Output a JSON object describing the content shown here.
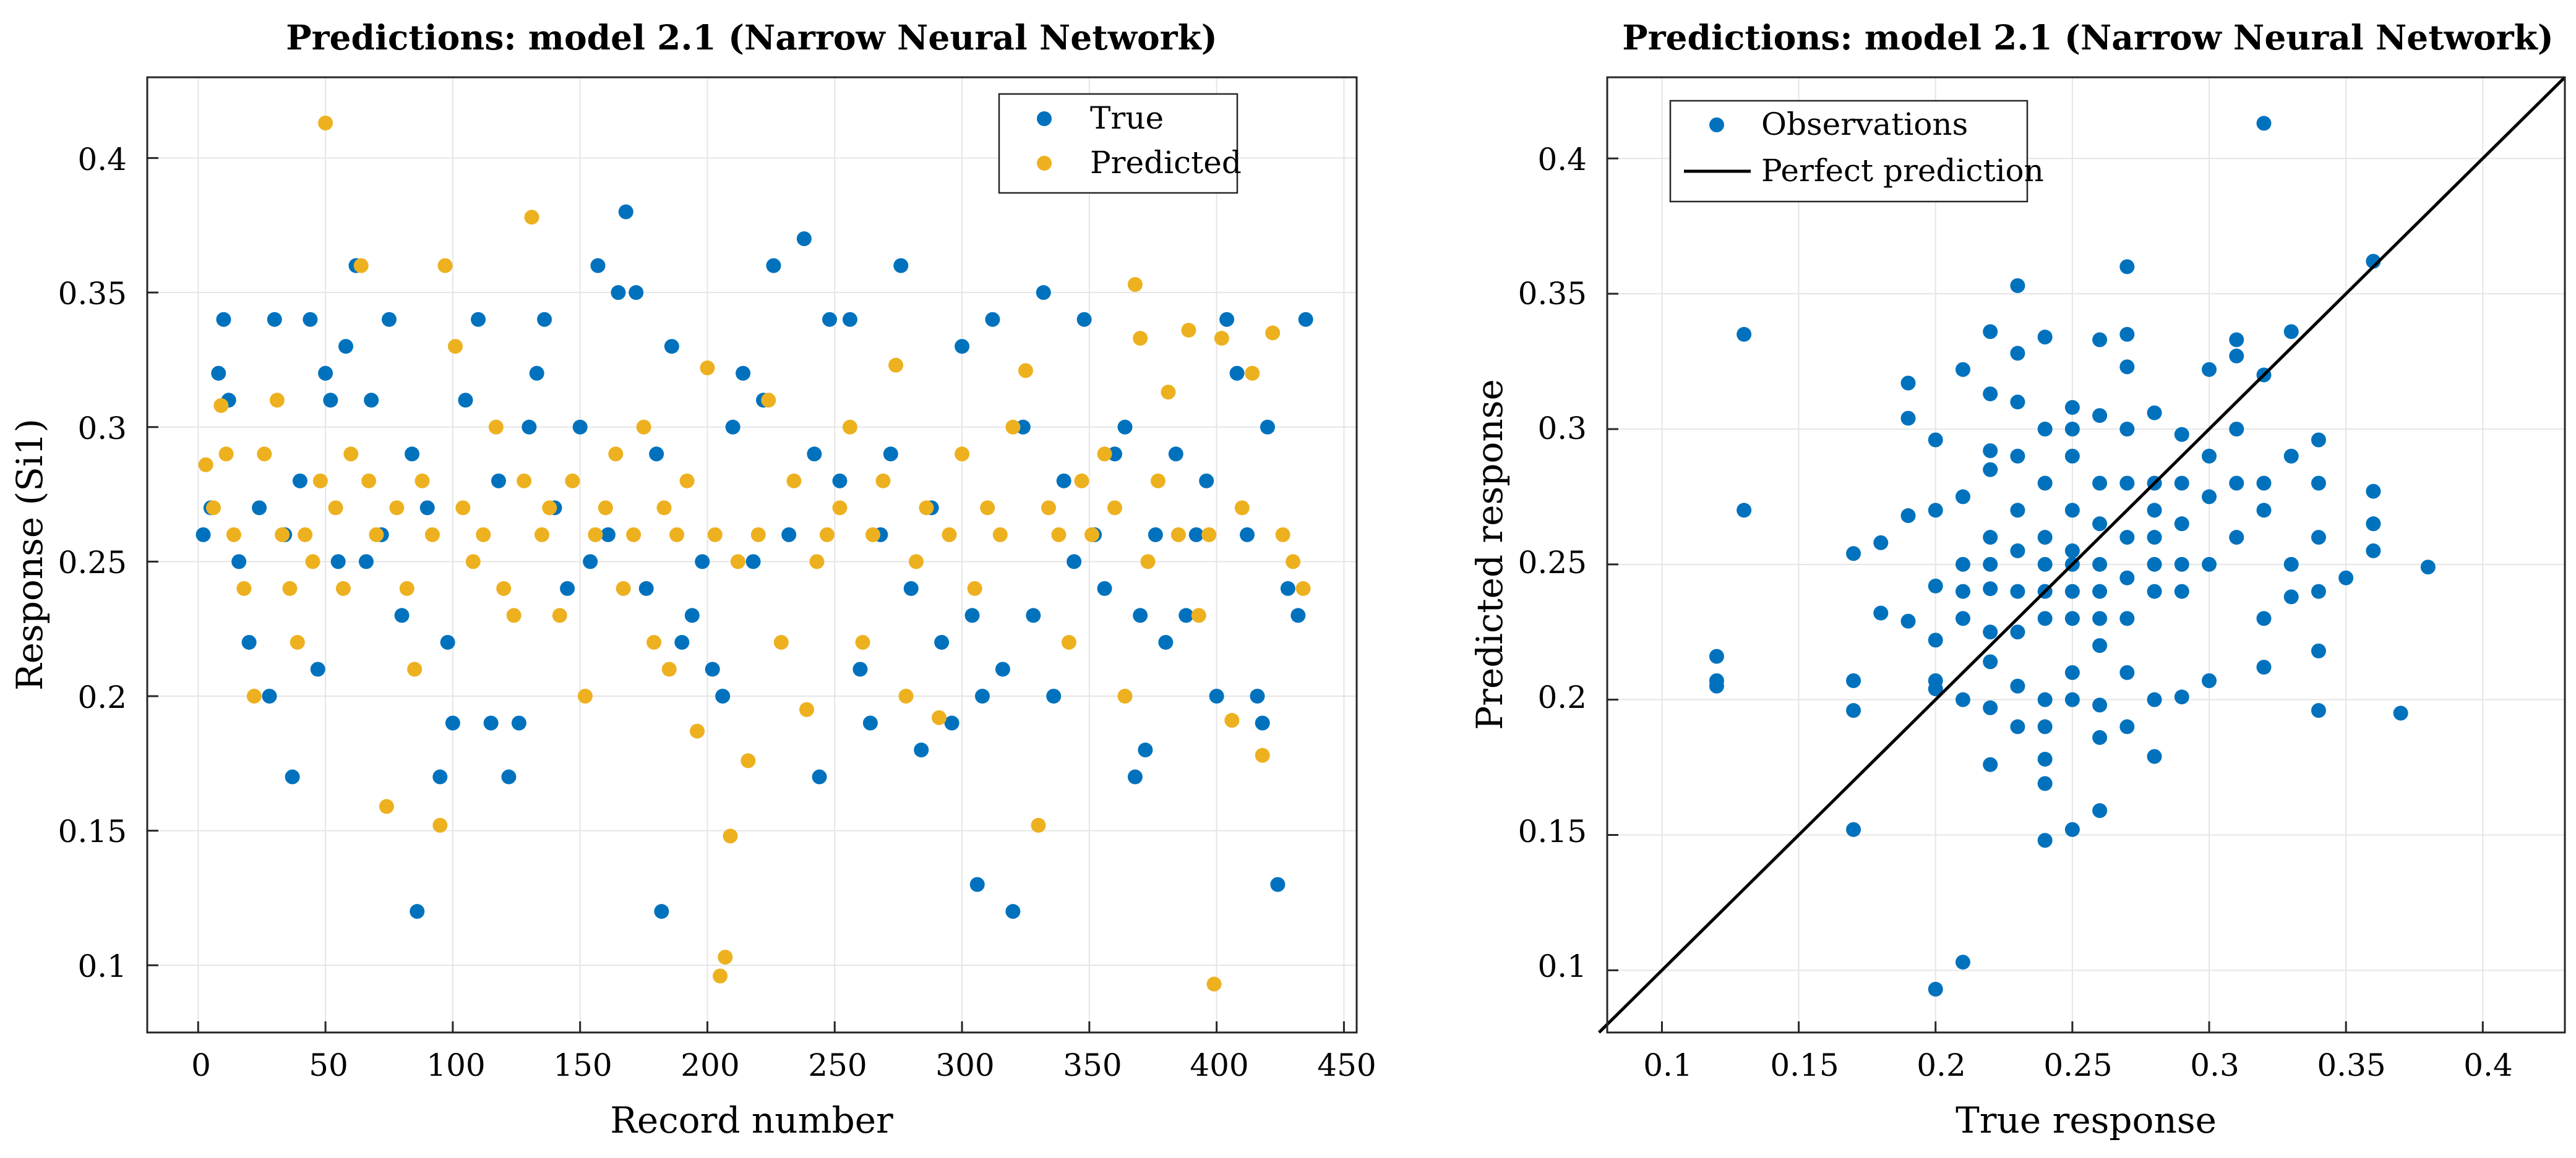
{
  "colors": {
    "true": "#0072BD",
    "predicted": "#EDB120",
    "perfect": "#000000",
    "grid": "#e5e5e5",
    "axis": "#262626"
  },
  "chart_data": [
    {
      "type": "scatter",
      "title": "Predictions: model 2.1 (Narrow Neural Network)",
      "xlabel": "Record number",
      "ylabel": "Response (Si1)",
      "xlim": [
        -20,
        455
      ],
      "ylim": [
        0.075,
        0.43
      ],
      "xticks": [
        0,
        50,
        100,
        150,
        200,
        250,
        300,
        350,
        400,
        450
      ],
      "xtick_labels": [
        "0",
        "50",
        "100",
        "150",
        "200",
        "250",
        "300",
        "350",
        "400",
        "450"
      ],
      "yticks": [
        0.1,
        0.15,
        0.2,
        0.25,
        0.3,
        0.35,
        0.4
      ],
      "ytick_labels": [
        "0.1",
        "0.15",
        "0.2",
        "0.25",
        "0.3",
        "0.35",
        "0.4"
      ],
      "grid": true,
      "legend": {
        "position": "top-right",
        "entries": [
          "True",
          "Predicted"
        ]
      },
      "series": [
        {
          "name": "True",
          "x": [
            2,
            5,
            8,
            10,
            12,
            16,
            20,
            24,
            28,
            30,
            34,
            37,
            40,
            44,
            47,
            50,
            52,
            55,
            58,
            62,
            66,
            68,
            72,
            75,
            80,
            84,
            86,
            90,
            95,
            98,
            100,
            105,
            110,
            115,
            118,
            122,
            126,
            130,
            133,
            136,
            140,
            145,
            150,
            154,
            157,
            161,
            165,
            168,
            172,
            176,
            180,
            182,
            186,
            190,
            194,
            198,
            202,
            206,
            210,
            214,
            218,
            222,
            226,
            232,
            238,
            242,
            244,
            248,
            252,
            256,
            260,
            264,
            268,
            272,
            276,
            280,
            284,
            288,
            292,
            296,
            300,
            304,
            306,
            308,
            312,
            316,
            320,
            324,
            328,
            332,
            336,
            340,
            344,
            348,
            352,
            356,
            360,
            364,
            368,
            370,
            372,
            376,
            380,
            384,
            388,
            392,
            396,
            400,
            404,
            408,
            412,
            416,
            418,
            420,
            424,
            428,
            432,
            435
          ],
          "y": [
            0.26,
            0.27,
            0.32,
            0.34,
            0.31,
            0.25,
            0.22,
            0.27,
            0.2,
            0.34,
            0.26,
            0.17,
            0.28,
            0.34,
            0.21,
            0.32,
            0.31,
            0.25,
            0.33,
            0.36,
            0.25,
            0.31,
            0.26,
            0.34,
            0.23,
            0.29,
            0.12,
            0.27,
            0.17,
            0.22,
            0.19,
            0.31,
            0.34,
            0.19,
            0.28,
            0.17,
            0.19,
            0.3,
            0.32,
            0.34,
            0.27,
            0.24,
            0.3,
            0.25,
            0.36,
            0.26,
            0.35,
            0.38,
            0.35,
            0.24,
            0.29,
            0.12,
            0.33,
            0.22,
            0.23,
            0.25,
            0.21,
            0.2,
            0.3,
            0.32,
            0.25,
            0.31,
            0.36,
            0.26,
            0.37,
            0.29,
            0.17,
            0.34,
            0.28,
            0.34,
            0.21,
            0.19,
            0.26,
            0.29,
            0.36,
            0.24,
            0.18,
            0.27,
            0.22,
            0.19,
            0.33,
            0.23,
            0.13,
            0.2,
            0.34,
            0.21,
            0.12,
            0.3,
            0.23,
            0.35,
            0.2,
            0.28,
            0.25,
            0.34,
            0.26,
            0.24,
            0.29,
            0.3,
            0.17,
            0.23,
            0.18,
            0.26,
            0.22,
            0.29,
            0.23,
            0.26,
            0.28,
            0.2,
            0.34,
            0.32,
            0.26,
            0.2,
            0.19,
            0.3,
            0.13,
            0.24,
            0.23,
            0.34
          ]
        },
        {
          "name": "Predicted",
          "x": [
            3,
            6,
            9,
            11,
            14,
            18,
            22,
            26,
            31,
            33,
            36,
            39,
            42,
            45,
            48,
            50,
            54,
            57,
            60,
            64,
            67,
            70,
            74,
            78,
            82,
            85,
            88,
            92,
            95,
            97,
            101,
            104,
            108,
            112,
            117,
            120,
            124,
            128,
            131,
            135,
            138,
            142,
            147,
            152,
            156,
            160,
            164,
            167,
            171,
            175,
            179,
            183,
            185,
            188,
            192,
            196,
            200,
            203,
            205,
            207,
            209,
            212,
            216,
            220,
            224,
            229,
            234,
            239,
            243,
            247,
            252,
            256,
            261,
            265,
            269,
            274,
            278,
            282,
            286,
            291,
            295,
            300,
            305,
            310,
            315,
            320,
            325,
            330,
            334,
            338,
            342,
            347,
            351,
            356,
            360,
            364,
            368,
            370,
            373,
            377,
            381,
            385,
            389,
            393,
            397,
            399,
            402,
            406,
            410,
            414,
            418,
            422,
            426,
            430,
            434
          ],
          "y": [
            0.286,
            0.27,
            0.308,
            0.29,
            0.26,
            0.24,
            0.2,
            0.29,
            0.31,
            0.26,
            0.24,
            0.22,
            0.26,
            0.25,
            0.28,
            0.413,
            0.27,
            0.24,
            0.29,
            0.36,
            0.28,
            0.26,
            0.159,
            0.27,
            0.24,
            0.21,
            0.28,
            0.26,
            0.152,
            0.36,
            0.33,
            0.27,
            0.25,
            0.26,
            0.3,
            0.24,
            0.23,
            0.28,
            0.378,
            0.26,
            0.27,
            0.23,
            0.28,
            0.2,
            0.26,
            0.27,
            0.29,
            0.24,
            0.26,
            0.3,
            0.22,
            0.27,
            0.21,
            0.26,
            0.28,
            0.187,
            0.322,
            0.26,
            0.096,
            0.103,
            0.148,
            0.25,
            0.176,
            0.26,
            0.31,
            0.22,
            0.28,
            0.195,
            0.25,
            0.26,
            0.27,
            0.3,
            0.22,
            0.26,
            0.28,
            0.323,
            0.2,
            0.25,
            0.27,
            0.192,
            0.26,
            0.29,
            0.24,
            0.27,
            0.26,
            0.3,
            0.321,
            0.152,
            0.27,
            0.26,
            0.22,
            0.28,
            0.26,
            0.29,
            0.27,
            0.2,
            0.353,
            0.333,
            0.25,
            0.28,
            0.313,
            0.26,
            0.336,
            0.23,
            0.26,
            0.093,
            0.333,
            0.191,
            0.27,
            0.32,
            0.178,
            0.335,
            0.26,
            0.25,
            0.24
          ]
        }
      ]
    },
    {
      "type": "scatter",
      "title": "Predictions: model 2.1 (Narrow Neural Network)",
      "xlabel": "True response",
      "ylabel": "Predicted response",
      "xlim": [
        0.08,
        0.43
      ],
      "ylim": [
        0.077,
        0.43
      ],
      "xticks": [
        0.1,
        0.15,
        0.2,
        0.25,
        0.3,
        0.35,
        0.4
      ],
      "xtick_labels": [
        "0.1",
        "0.15",
        "0.2",
        "0.25",
        "0.3",
        "0.35",
        "0.4"
      ],
      "yticks": [
        0.1,
        0.15,
        0.2,
        0.25,
        0.3,
        0.35,
        0.4
      ],
      "ytick_labels": [
        "0.1",
        "0.15",
        "0.2",
        "0.25",
        "0.3",
        "0.35",
        "0.4"
      ],
      "grid": true,
      "legend": {
        "position": "top-left",
        "entries": [
          "Observations",
          "Perfect prediction"
        ]
      },
      "series": [
        {
          "name": "Observations",
          "x": [
            0.12,
            0.12,
            0.12,
            0.13,
            0.13,
            0.17,
            0.17,
            0.17,
            0.17,
            0.18,
            0.18,
            0.19,
            0.19,
            0.19,
            0.19,
            0.2,
            0.2,
            0.2,
            0.2,
            0.2,
            0.2,
            0.2,
            0.21,
            0.21,
            0.21,
            0.21,
            0.21,
            0.21,
            0.21,
            0.22,
            0.22,
            0.22,
            0.22,
            0.22,
            0.22,
            0.22,
            0.22,
            0.22,
            0.22,
            0.22,
            0.23,
            0.23,
            0.23,
            0.23,
            0.23,
            0.23,
            0.23,
            0.23,
            0.23,
            0.23,
            0.24,
            0.24,
            0.24,
            0.24,
            0.24,
            0.24,
            0.24,
            0.24,
            0.24,
            0.24,
            0.24,
            0.24,
            0.25,
            0.25,
            0.25,
            0.25,
            0.25,
            0.25,
            0.25,
            0.25,
            0.25,
            0.25,
            0.25,
            0.26,
            0.26,
            0.26,
            0.26,
            0.26,
            0.26,
            0.26,
            0.26,
            0.26,
            0.26,
            0.26,
            0.27,
            0.27,
            0.27,
            0.27,
            0.27,
            0.27,
            0.27,
            0.27,
            0.27,
            0.27,
            0.28,
            0.28,
            0.28,
            0.28,
            0.28,
            0.28,
            0.28,
            0.28,
            0.29,
            0.29,
            0.29,
            0.29,
            0.29,
            0.29,
            0.3,
            0.3,
            0.3,
            0.3,
            0.3,
            0.31,
            0.31,
            0.31,
            0.31,
            0.31,
            0.32,
            0.32,
            0.32,
            0.32,
            0.32,
            0.32,
            0.33,
            0.33,
            0.33,
            0.33,
            0.34,
            0.34,
            0.34,
            0.34,
            0.34,
            0.34,
            0.35,
            0.36,
            0.36,
            0.36,
            0.36,
            0.37,
            0.38
          ],
          "y": [
            0.216,
            0.207,
            0.205,
            0.335,
            0.27,
            0.254,
            0.207,
            0.196,
            0.152,
            0.258,
            0.232,
            0.317,
            0.304,
            0.268,
            0.229,
            0.296,
            0.27,
            0.242,
            0.222,
            0.207,
            0.204,
            0.093,
            0.322,
            0.275,
            0.25,
            0.24,
            0.23,
            0.2,
            0.103,
            0.336,
            0.313,
            0.292,
            0.285,
            0.26,
            0.25,
            0.241,
            0.225,
            0.214,
            0.197,
            0.176,
            0.353,
            0.328,
            0.31,
            0.29,
            0.27,
            0.255,
            0.24,
            0.225,
            0.205,
            0.19,
            0.334,
            0.3,
            0.28,
            0.26,
            0.25,
            0.24,
            0.23,
            0.2,
            0.19,
            0.178,
            0.169,
            0.148,
            0.308,
            0.3,
            0.29,
            0.27,
            0.255,
            0.25,
            0.24,
            0.23,
            0.21,
            0.2,
            0.152,
            0.333,
            0.305,
            0.28,
            0.265,
            0.25,
            0.24,
            0.23,
            0.22,
            0.198,
            0.186,
            0.159,
            0.36,
            0.335,
            0.323,
            0.3,
            0.28,
            0.26,
            0.245,
            0.23,
            0.21,
            0.19,
            0.306,
            0.28,
            0.27,
            0.26,
            0.25,
            0.24,
            0.2,
            0.179,
            0.298,
            0.28,
            0.265,
            0.25,
            0.24,
            0.201,
            0.322,
            0.29,
            0.275,
            0.25,
            0.207,
            0.333,
            0.327,
            0.3,
            0.28,
            0.26,
            0.413,
            0.32,
            0.28,
            0.27,
            0.23,
            0.212,
            0.336,
            0.29,
            0.25,
            0.238,
            0.296,
            0.28,
            0.26,
            0.24,
            0.218,
            0.196,
            0.245,
            0.362,
            0.277,
            0.265,
            0.255,
            0.195,
            0.249
          ]
        }
      ],
      "perfect_line": {
        "name": "Perfect prediction",
        "from": [
          0.077,
          0.077
        ],
        "to": [
          0.43,
          0.43
        ]
      }
    }
  ]
}
